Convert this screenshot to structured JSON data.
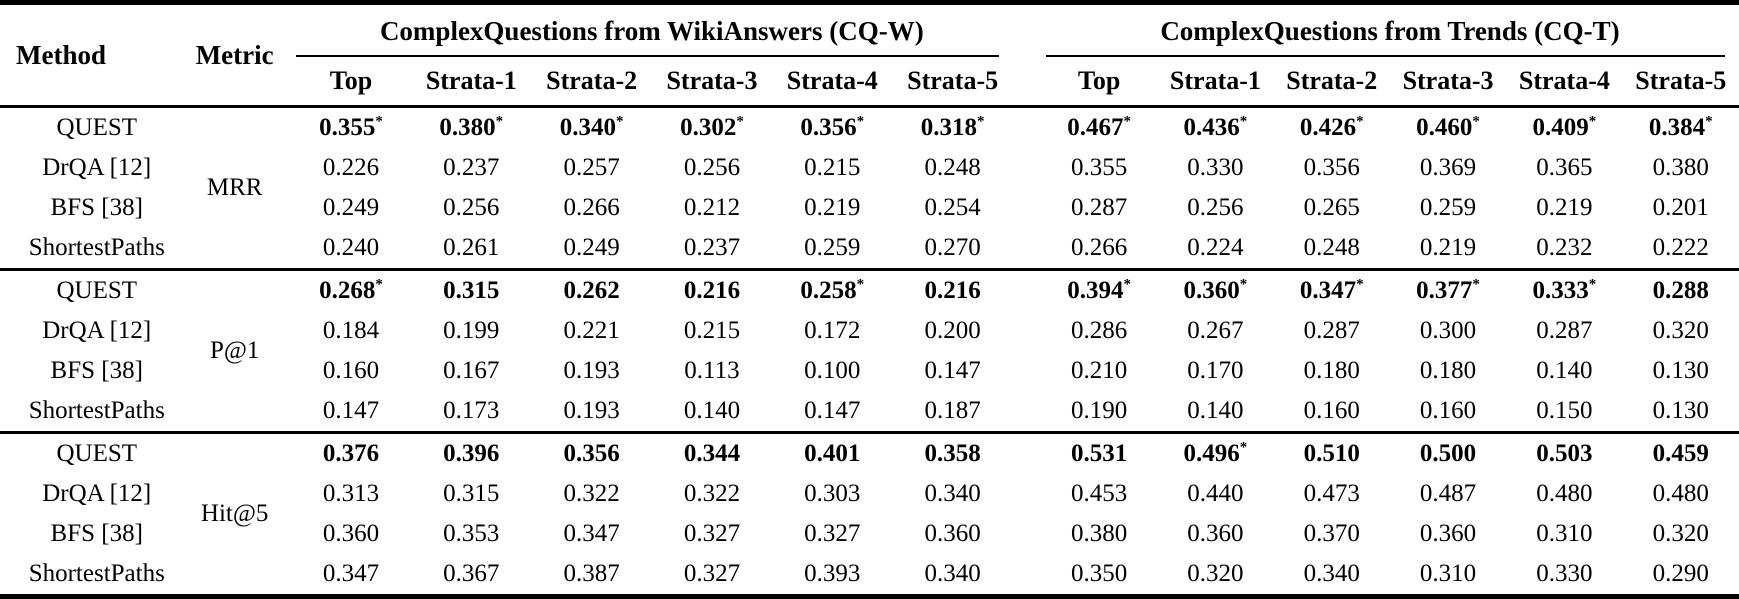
{
  "table": {
    "headers": {
      "method": "Method",
      "metric": "Metric",
      "groups": [
        {
          "label": "ComplexQuestions from WikiAnswers (CQ-W)"
        },
        {
          "label": "ComplexQuestions from Trends (CQ-T)"
        }
      ],
      "subcolumns": [
        "Top",
        "Strata-1",
        "Strata-2",
        "Strata-3",
        "Strata-4",
        "Strata-5"
      ]
    },
    "blocks": [
      {
        "metric": "MRR",
        "rows": [
          {
            "method": "QUEST",
            "bold": true,
            "cqw": [
              "0.355*",
              "0.380*",
              "0.340*",
              "0.302*",
              "0.356*",
              "0.318*"
            ],
            "cqt": [
              "0.467*",
              "0.436*",
              "0.426*",
              "0.460*",
              "0.409*",
              "0.384*"
            ]
          },
          {
            "method": "DrQA [12]",
            "bold": false,
            "cqw": [
              "0.226",
              "0.237",
              "0.257",
              "0.256",
              "0.215",
              "0.248"
            ],
            "cqt": [
              "0.355",
              "0.330",
              "0.356",
              "0.369",
              "0.365",
              "0.380"
            ]
          },
          {
            "method": "BFS [38]",
            "bold": false,
            "cqw": [
              "0.249",
              "0.256",
              "0.266",
              "0.212",
              "0.219",
              "0.254"
            ],
            "cqt": [
              "0.287",
              "0.256",
              "0.265",
              "0.259",
              "0.219",
              "0.201"
            ]
          },
          {
            "method": "ShortestPaths",
            "bold": false,
            "cqw": [
              "0.240",
              "0.261",
              "0.249",
              "0.237",
              "0.259",
              "0.270"
            ],
            "cqt": [
              "0.266",
              "0.224",
              "0.248",
              "0.219",
              "0.232",
              "0.222"
            ]
          }
        ]
      },
      {
        "metric": "P@1",
        "rows": [
          {
            "method": "QUEST",
            "bold": true,
            "cqw": [
              "0.268*",
              "0.315",
              "0.262",
              "0.216",
              "0.258*",
              "0.216"
            ],
            "cqt": [
              "0.394*",
              "0.360*",
              "0.347*",
              "0.377*",
              "0.333*",
              "0.288"
            ]
          },
          {
            "method": "DrQA [12]",
            "bold": false,
            "cqw": [
              "0.184",
              "0.199",
              "0.221",
              "0.215",
              "0.172",
              "0.200"
            ],
            "cqt": [
              "0.286",
              "0.267",
              "0.287",
              "0.300",
              "0.287",
              "0.320"
            ]
          },
          {
            "method": "BFS [38]",
            "bold": false,
            "cqw": [
              "0.160",
              "0.167",
              "0.193",
              "0.113",
              "0.100",
              "0.147"
            ],
            "cqt": [
              "0.210",
              "0.170",
              "0.180",
              "0.180",
              "0.140",
              "0.130"
            ]
          },
          {
            "method": "ShortestPaths",
            "bold": false,
            "cqw": [
              "0.147",
              "0.173",
              "0.193",
              "0.140",
              "0.147",
              "0.187"
            ],
            "cqt": [
              "0.190",
              "0.140",
              "0.160",
              "0.160",
              "0.150",
              "0.130"
            ]
          }
        ]
      },
      {
        "metric": "Hit@5",
        "rows": [
          {
            "method": "QUEST",
            "bold": true,
            "cqw": [
              "0.376",
              "0.396",
              "0.356",
              "0.344",
              "0.401",
              "0.358"
            ],
            "cqt": [
              "0.531",
              "0.496*",
              "0.510",
              "0.500",
              "0.503",
              "0.459"
            ]
          },
          {
            "method": "DrQA [12]",
            "bold": false,
            "cqw": [
              "0.313",
              "0.315",
              "0.322",
              "0.322",
              "0.303",
              "0.340"
            ],
            "cqt": [
              "0.453",
              "0.440",
              "0.473",
              "0.487",
              "0.480",
              "0.480"
            ]
          },
          {
            "method": "BFS [38]",
            "bold": false,
            "cqw": [
              "0.360",
              "0.353",
              "0.347",
              "0.327",
              "0.327",
              "0.360"
            ],
            "cqt": [
              "0.380",
              "0.360",
              "0.370",
              "0.360",
              "0.310",
              "0.320"
            ]
          },
          {
            "method": "ShortestPaths",
            "bold": false,
            "cqw": [
              "0.347",
              "0.367",
              "0.387",
              "0.327",
              "0.393",
              "0.340"
            ],
            "cqt": [
              "0.350",
              "0.320",
              "0.340",
              "0.310",
              "0.330",
              "0.290"
            ]
          }
        ]
      }
    ]
  }
}
